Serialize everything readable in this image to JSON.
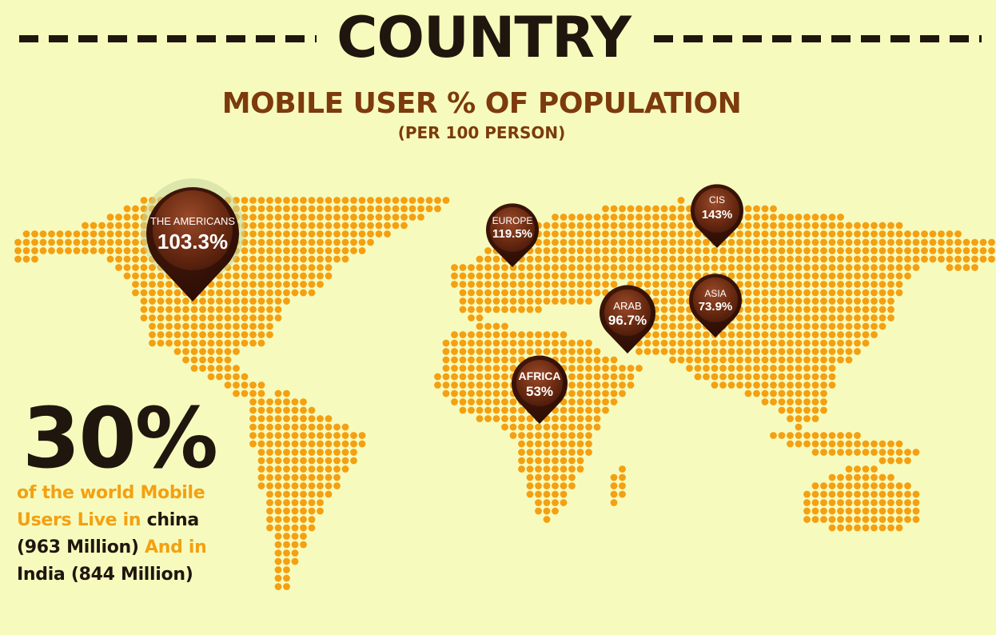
{
  "header": {
    "title": "COUNTRY",
    "subtitle": "MOBILE USER % OF POPULATION",
    "note": "(PER 100 PERSON)"
  },
  "colors": {
    "background": "#f6fbbd",
    "dot": "#f4a012",
    "pin": "#6b2b12",
    "title": "#1f160e",
    "subtitle": "#7c3a0d"
  },
  "pins": [
    {
      "id": "americas",
      "label": "THE AMERICANS",
      "value": "103.3%"
    },
    {
      "id": "europe",
      "label": "EUROPE",
      "value": "119.5%"
    },
    {
      "id": "cis",
      "label": "CIS",
      "value": "143%"
    },
    {
      "id": "arab",
      "label": "ARAB",
      "value": "96.7%"
    },
    {
      "id": "asia",
      "label": "ASIA",
      "value": "73.9%"
    },
    {
      "id": "africa",
      "label": "AFRICA",
      "value": "53%"
    }
  ],
  "stat": {
    "big": "30%",
    "line1": "of the world Mobile",
    "line2a": "Users Live in ",
    "line2b": "china",
    "line3a": "(963 Million)",
    "line3b": " And in",
    "line4": "India (844 Million)"
  }
}
